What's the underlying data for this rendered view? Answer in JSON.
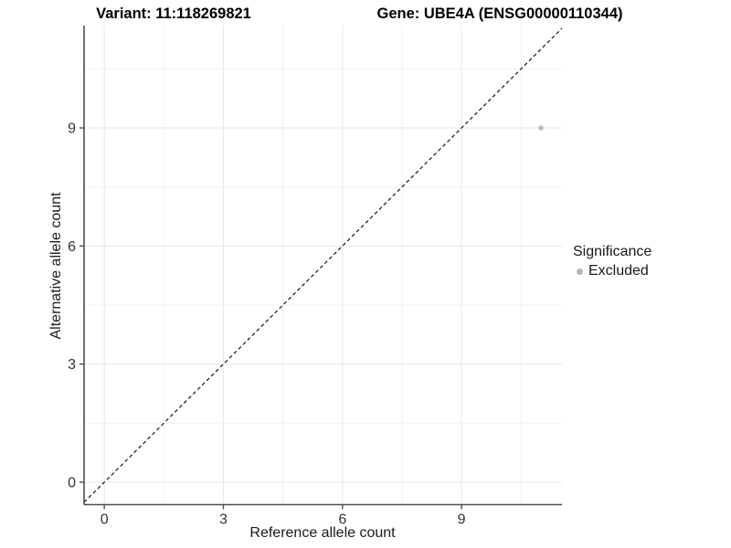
{
  "header": {
    "variant_title": "Variant: 11:118269821",
    "gene_title": "Gene: UBE4A (ENSG00000110344)"
  },
  "chart_data": {
    "type": "scatter",
    "title": "Variant: 11:118269821 — Gene: UBE4A (ENSG00000110344)",
    "xlabel": "Reference allele count",
    "ylabel": "Alternative allele count",
    "x_ticks": [
      0,
      3,
      6,
      9
    ],
    "y_ticks": [
      0,
      3,
      6,
      9
    ],
    "x_minor_ticks": [
      1.5,
      4.5,
      7.5,
      10.5
    ],
    "y_minor_ticks": [
      1.5,
      4.5,
      7.5,
      10.5
    ],
    "xlim": [
      -0.51,
      11.53
    ],
    "ylim": [
      -0.57,
      11.6
    ],
    "grid": true,
    "identity_line": {
      "type": "y=x",
      "style": "dashed",
      "color": "#000000"
    },
    "series": [
      {
        "name": "Excluded",
        "color": "#bdbdbd",
        "point_radius": 2.8,
        "points": [
          {
            "x": 11,
            "y": 9
          }
        ]
      }
    ],
    "legend": {
      "title": "Significance",
      "position": "right",
      "items": [
        {
          "label": "Excluded",
          "color": "#b5b5b5"
        }
      ]
    },
    "colors": {
      "grid_major": "#e6e6e6",
      "grid_minor": "#f1f1f1",
      "axis_line": "#4d4d4d",
      "tick_text": "#333333"
    }
  }
}
